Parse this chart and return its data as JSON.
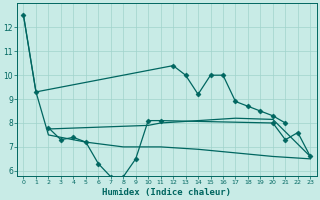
{
  "xlabel": "Humidex (Indice chaleur)",
  "background_color": "#c8ebe6",
  "grid_color": "#a0d4cc",
  "line_color": "#006660",
  "xlim": [
    -0.5,
    23.5
  ],
  "ylim": [
    5.8,
    13.0
  ],
  "yticks": [
    6,
    7,
    8,
    9,
    10,
    11,
    12
  ],
  "xticks": [
    0,
    1,
    2,
    3,
    4,
    5,
    6,
    7,
    8,
    9,
    10,
    11,
    12,
    13,
    14,
    15,
    16,
    17,
    18,
    19,
    20,
    21,
    22,
    23
  ],
  "s1x": [
    0,
    1,
    12,
    13,
    14,
    15,
    16,
    17,
    18,
    19,
    20,
    21
  ],
  "s1y": [
    12.5,
    9.3,
    10.4,
    10.0,
    9.2,
    10.0,
    10.0,
    8.9,
    8.7,
    8.5,
    8.3,
    8.0
  ],
  "s2x": [
    2,
    3,
    4,
    5,
    6,
    7,
    8,
    9,
    10,
    11,
    20,
    21,
    22,
    23
  ],
  "s2y": [
    7.8,
    7.3,
    7.4,
    7.2,
    6.3,
    5.75,
    5.75,
    6.5,
    8.1,
    8.1,
    8.0,
    7.3,
    7.6,
    6.6
  ],
  "s3x": [
    2,
    10,
    11,
    14,
    17,
    20,
    23
  ],
  "s3y": [
    7.75,
    7.9,
    8.0,
    8.1,
    8.2,
    8.15,
    6.6
  ],
  "s4x": [
    0,
    1,
    2,
    5,
    8,
    11,
    14,
    17,
    20,
    23
  ],
  "s4y": [
    12.5,
    9.3,
    7.5,
    7.2,
    7.0,
    7.0,
    6.9,
    6.75,
    6.6,
    6.5
  ]
}
